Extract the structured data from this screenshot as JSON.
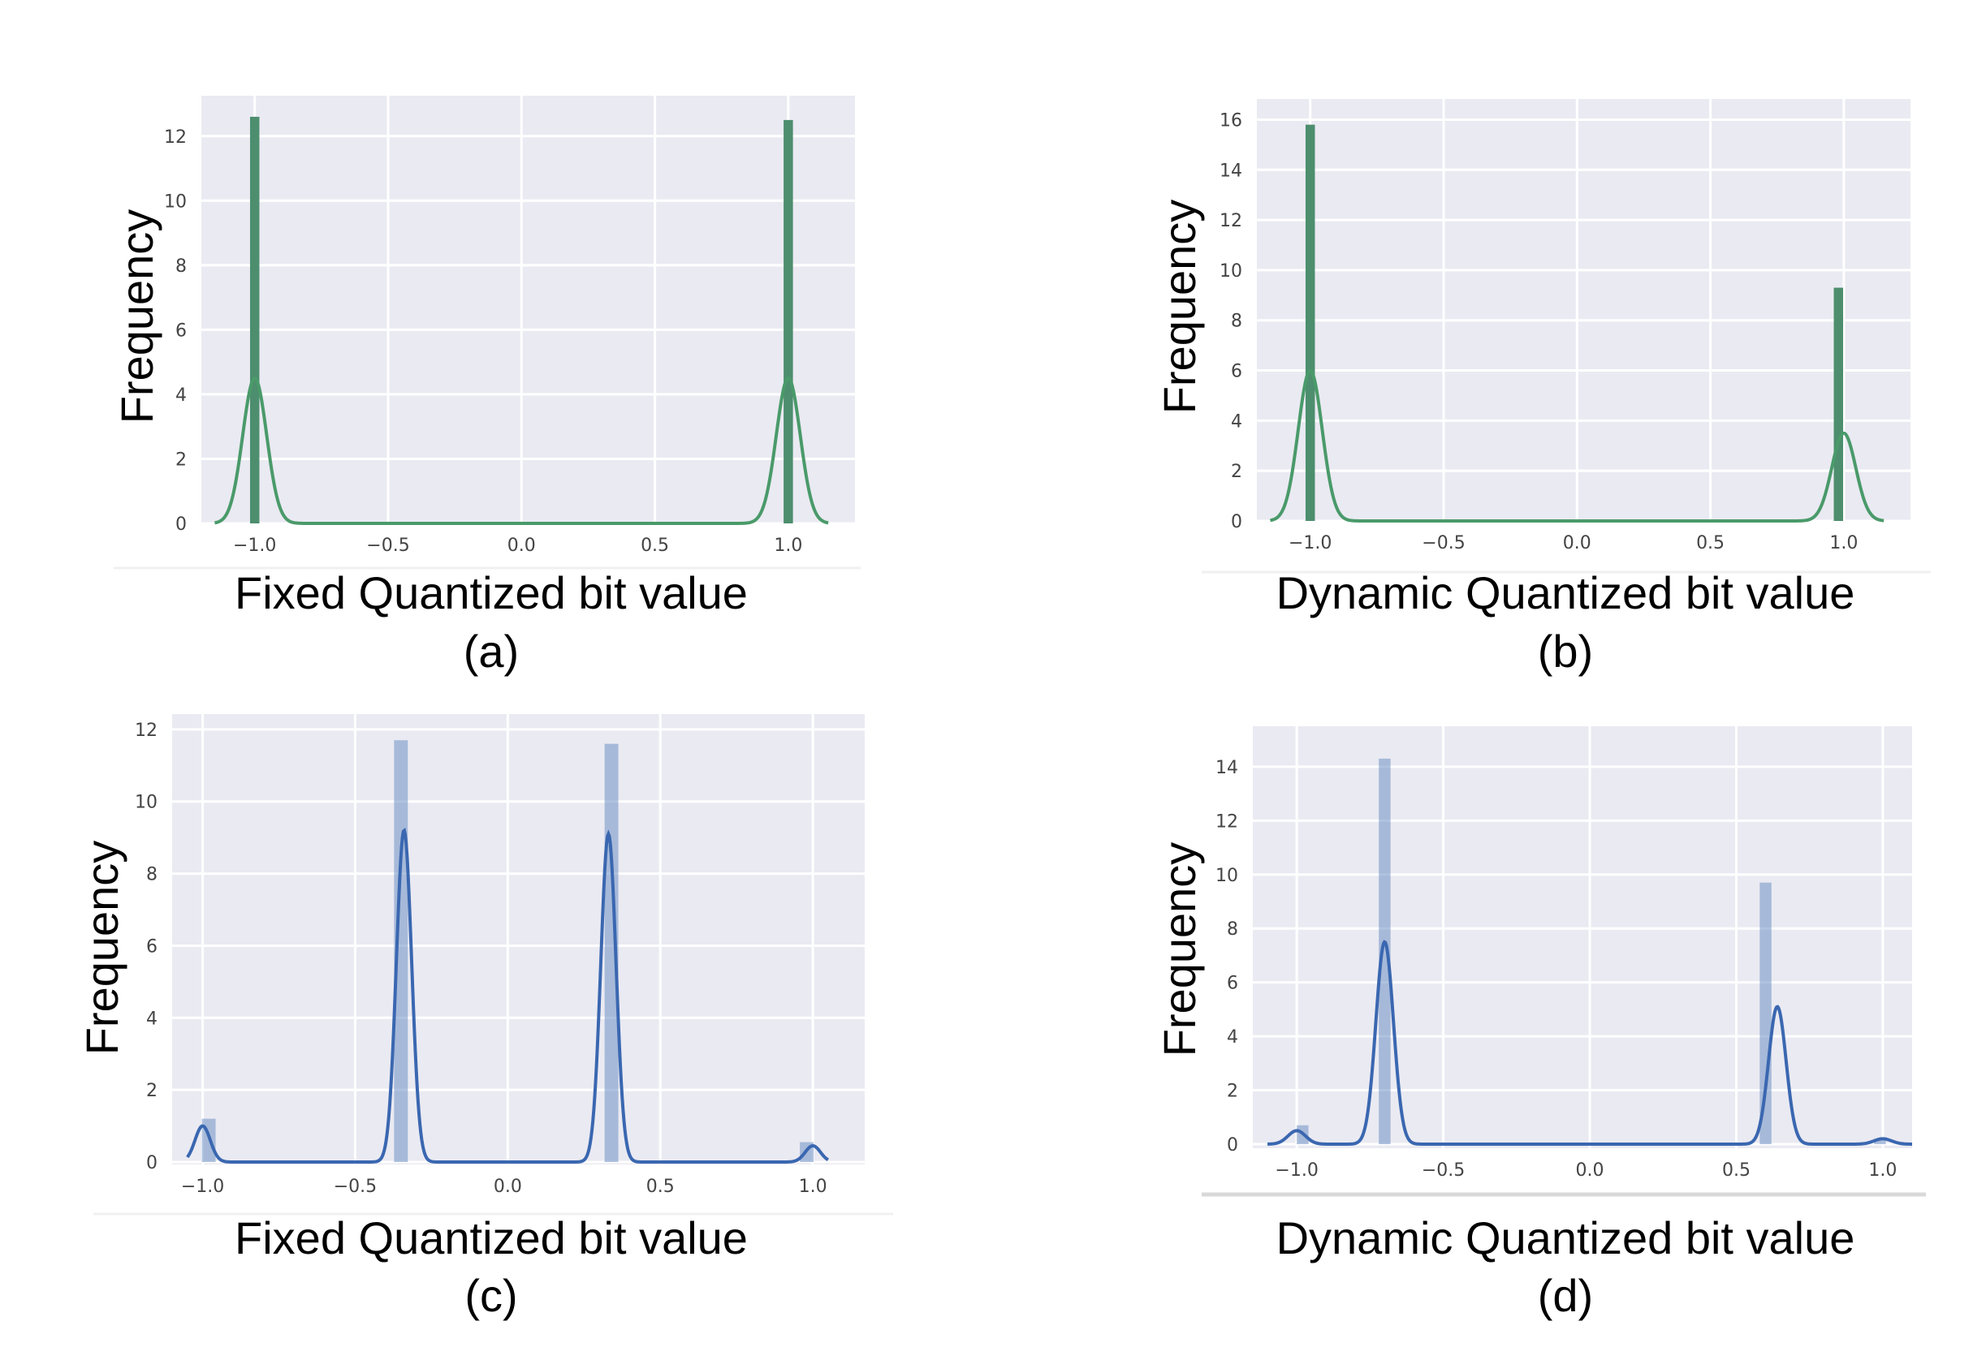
{
  "chart_data": [
    {
      "type": "histogram-kde",
      "panel_label": "(a)",
      "xlabel": "Fixed Quantized bit value",
      "ylabel": "Frequency",
      "xlim": [
        -1.2,
        1.25
      ],
      "ylim": [
        0,
        13
      ],
      "xticks": [
        -1.0,
        -0.5,
        0.0,
        0.5,
        1.0
      ],
      "xtick_labels": [
        "−1.0",
        "−0.5",
        "0.0",
        "0.5",
        "1.0"
      ],
      "yticks": [
        0,
        2,
        4,
        6,
        8,
        10,
        12
      ],
      "ytick_labels": [
        "0",
        "2",
        "4",
        "6",
        "8",
        "10",
        "12"
      ],
      "grid": true,
      "bar_color": "#4d8e6e",
      "line_color": "#4a9a6a",
      "bar_opacity": 1.0,
      "bar_width": 0.035,
      "bars": [
        {
          "x": -1.0,
          "height": 12.6
        },
        {
          "x": 1.0,
          "height": 12.5
        }
      ],
      "kde": [
        {
          "mu": -1.0,
          "amp": 4.5,
          "sigma": 0.045
        },
        {
          "mu": 1.0,
          "amp": 4.5,
          "sigma": 0.045
        }
      ],
      "kde_range": [
        -1.15,
        1.15
      ]
    },
    {
      "type": "histogram-kde",
      "panel_label": "(b)",
      "xlabel": "Dynamic Quantized bit value",
      "ylabel": "Frequency",
      "xlim": [
        -1.2,
        1.25
      ],
      "ylim": [
        0,
        16.5
      ],
      "xticks": [
        -1.0,
        -0.5,
        0.0,
        0.5,
        1.0
      ],
      "xtick_labels": [
        "−1.0",
        "−0.5",
        "0.0",
        "0.5",
        "1.0"
      ],
      "yticks": [
        0,
        2,
        4,
        6,
        8,
        10,
        12,
        14,
        16
      ],
      "ytick_labels": [
        "0",
        "2",
        "4",
        "6",
        "8",
        "10",
        "12",
        "14",
        "16"
      ],
      "grid": true,
      "bar_color": "#4d8e6e",
      "line_color": "#4a9a6a",
      "bar_opacity": 1.0,
      "bar_width": 0.035,
      "bars": [
        {
          "x": -1.0,
          "height": 15.8
        },
        {
          "x": 0.98,
          "height": 9.3
        }
      ],
      "kde": [
        {
          "mu": -1.0,
          "amp": 6.0,
          "sigma": 0.045
        },
        {
          "mu": 1.0,
          "amp": 3.5,
          "sigma": 0.045
        }
      ],
      "kde_range": [
        -1.15,
        1.15
      ]
    },
    {
      "type": "histogram-kde",
      "panel_label": "(c)",
      "xlabel": "Fixed Quantized bit value",
      "ylabel": "Frequency",
      "xlim": [
        -1.1,
        1.17
      ],
      "ylim": [
        0,
        12.2
      ],
      "xticks": [
        -1.0,
        -0.5,
        0.0,
        0.5,
        1.0
      ],
      "xtick_labels": [
        "−1.0",
        "−0.5",
        "0.0",
        "0.5",
        "1.0"
      ],
      "yticks": [
        0,
        2,
        4,
        6,
        8,
        10,
        12
      ],
      "ytick_labels": [
        "0",
        "2",
        "4",
        "6",
        "8",
        "10",
        "12"
      ],
      "grid": true,
      "bar_color": "#6e8fc4",
      "line_color": "#3a67b0",
      "bar_opacity": 0.55,
      "bar_width": 0.045,
      "bars": [
        {
          "x": -0.98,
          "height": 1.2
        },
        {
          "x": -0.35,
          "height": 11.7
        },
        {
          "x": 0.34,
          "height": 11.6
        },
        {
          "x": 0.98,
          "height": 0.55
        }
      ],
      "kde": [
        {
          "mu": -1.0,
          "amp": 1.0,
          "sigma": 0.025
        },
        {
          "mu": -0.34,
          "amp": 9.2,
          "sigma": 0.025
        },
        {
          "mu": 0.33,
          "amp": 9.1,
          "sigma": 0.025
        },
        {
          "mu": 1.0,
          "amp": 0.45,
          "sigma": 0.025
        }
      ],
      "kde_range": [
        -1.05,
        1.05
      ]
    },
    {
      "type": "histogram-kde",
      "panel_label": "(d)",
      "xlabel": "Dynamic Quantized bit value",
      "ylabel": "Frequency",
      "xlim": [
        -1.15,
        1.1
      ],
      "ylim": [
        0,
        15.2
      ],
      "xticks": [
        -1.0,
        -0.5,
        0.0,
        0.5,
        1.0
      ],
      "xtick_labels": [
        "−1.0",
        "−0.5",
        "0.0",
        "0.5",
        "1.0"
      ],
      "yticks": [
        0,
        2,
        4,
        6,
        8,
        10,
        12,
        14
      ],
      "ytick_labels": [
        "0",
        "2",
        "4",
        "6",
        "8",
        "10",
        "12",
        "14"
      ],
      "grid": true,
      "bar_color": "#6e8fc4",
      "line_color": "#3a67b0",
      "bar_opacity": 0.55,
      "bar_width": 0.04,
      "bars": [
        {
          "x": -0.98,
          "height": 0.7
        },
        {
          "x": -0.7,
          "height": 14.3
        },
        {
          "x": 0.6,
          "height": 9.7
        },
        {
          "x": 0.99,
          "height": 0.2
        }
      ],
      "kde": [
        {
          "mu": -1.0,
          "amp": 0.5,
          "sigma": 0.03
        },
        {
          "mu": -0.7,
          "amp": 7.5,
          "sigma": 0.03
        },
        {
          "mu": 0.64,
          "amp": 5.1,
          "sigma": 0.03
        },
        {
          "mu": 1.0,
          "amp": 0.2,
          "sigma": 0.03
        }
      ],
      "kde_range": [
        -1.1,
        1.1
      ]
    }
  ]
}
